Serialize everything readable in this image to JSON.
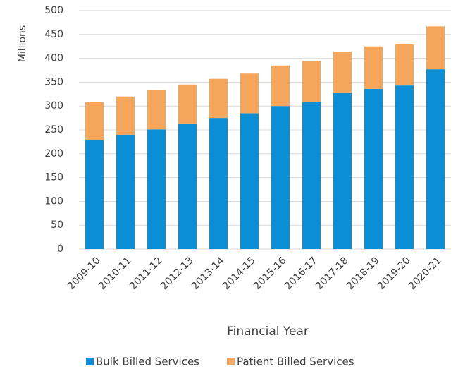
{
  "chart_data": {
    "type": "stacked_bar",
    "y_axis_label": "Millions",
    "x_axis_label": "Financial Year",
    "categories": [
      "2009-10",
      "2010-11",
      "2011-12",
      "2012-13",
      "2013-14",
      "2014-15",
      "2015-16",
      "2016-17",
      "2017-18",
      "2018-19",
      "2019-20",
      "2020-21"
    ],
    "series": [
      {
        "name": "Bulk Billed Services",
        "color": "#0a8fd6",
        "values": [
          228,
          240,
          251,
          262,
          275,
          285,
          300,
          308,
          327,
          336,
          343,
          377
        ]
      },
      {
        "name": "Patient Billed Services",
        "color": "#f5a65b",
        "values": [
          80,
          80,
          82,
          83,
          82,
          83,
          85,
          87,
          87,
          89,
          86,
          90
        ]
      }
    ],
    "ylim": [
      0,
      500
    ],
    "yticks": [
      0,
      50,
      100,
      150,
      200,
      250,
      300,
      350,
      400,
      450,
      500
    ],
    "grid": true,
    "legend": "bottom"
  }
}
